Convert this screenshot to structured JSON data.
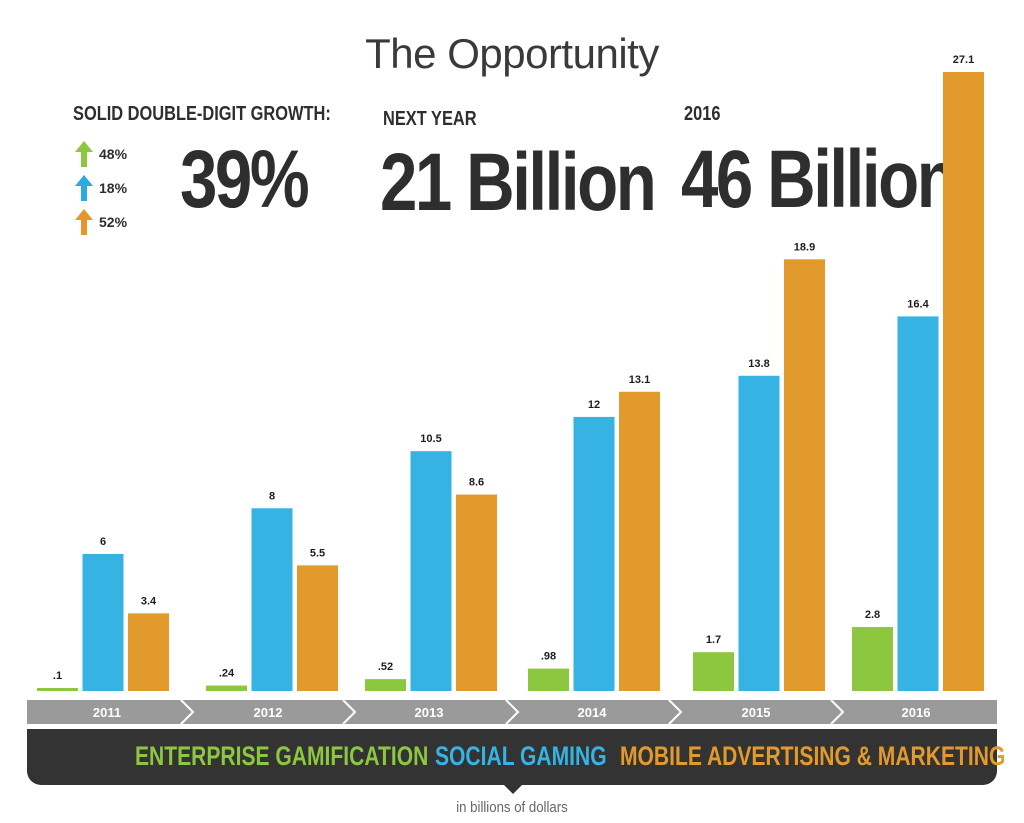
{
  "title": "The Opportunity",
  "stats": {
    "growth_label": "SOLID DOUBLE-DIGIT GROWTH:",
    "growth_value": "39%",
    "next_year_label": "NEXT YEAR",
    "next_year_value": "21 Billion",
    "year_label": "2016",
    "year_value": "46 Billion",
    "growth_items": [
      {
        "pct": "48%",
        "color": "#8dc63f",
        "icon": "up-arrow-icon"
      },
      {
        "pct": "18%",
        "color": "#29abe2",
        "icon": "up-arrow-icon"
      },
      {
        "pct": "52%",
        "color": "#e8962b",
        "icon": "up-arrow-icon"
      }
    ]
  },
  "legend": {
    "enterprise": "ENTERPRISE GAMIFICATION",
    "social": "SOCIAL GAMING",
    "mobile": "MOBILE ADVERTISING & MARKETING"
  },
  "unit_note": "in billions of dollars",
  "colors": {
    "enterprise": "#8dc63f",
    "social": "#36b3e3",
    "mobile": "#e39a2d",
    "axis": "#9a9a9a",
    "dark": "#333333"
  },
  "chart_data": {
    "type": "bar",
    "categories": [
      "2011",
      "2012",
      "2013",
      "2014",
      "2015",
      "2016"
    ],
    "series": [
      {
        "name": "ENTERPRISE GAMIFICATION",
        "values": [
          0.1,
          0.24,
          0.52,
          0.98,
          1.7,
          2.8
        ],
        "labels": [
          ".1",
          ".24",
          ".52",
          ".98",
          "1.7",
          "2.8"
        ]
      },
      {
        "name": "SOCIAL GAMING",
        "values": [
          6,
          8,
          10.5,
          12,
          13.8,
          16.4
        ],
        "labels": [
          "6",
          "8",
          "10.5",
          "12",
          "13.8",
          "16.4"
        ]
      },
      {
        "name": "MOBILE ADVERTISING & MARKETING",
        "values": [
          3.4,
          5.5,
          8.6,
          13.1,
          18.9,
          27.1
        ],
        "labels": [
          "3.4",
          "5.5",
          "8.6",
          "13.1",
          "18.9",
          "27.1"
        ]
      }
    ],
    "ylim": [
      0,
      27.1
    ],
    "ylabel": "in billions of dollars",
    "grid": false,
    "legend_placement": "bottom"
  }
}
